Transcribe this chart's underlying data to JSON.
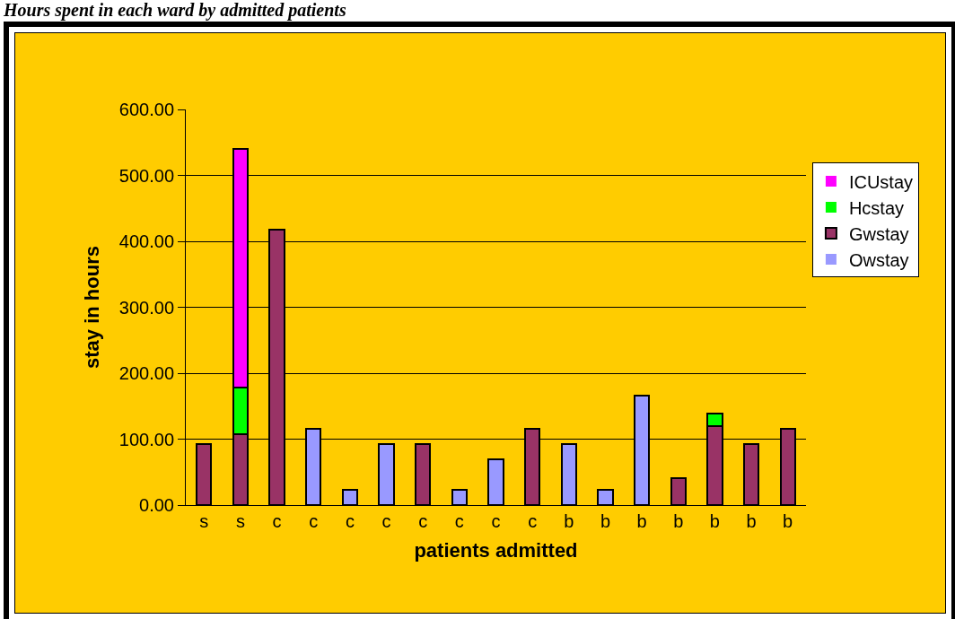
{
  "chart_data": {
    "type": "bar",
    "title": "Hours spent in each ward by admitted patients",
    "xlabel": "patients admitted",
    "ylabel": "stay in hours",
    "stacked": true,
    "categories": [
      "s",
      "s",
      "c",
      "c",
      "c",
      "c",
      "c",
      "c",
      "c",
      "c",
      "b",
      "b",
      "b",
      "b",
      "b",
      "b",
      "b"
    ],
    "series": [
      {
        "name": "Owstay",
        "color": "#9999ff",
        "values": [
          0,
          0,
          0,
          115,
          23,
          92,
          0,
          23,
          70,
          0,
          92,
          23,
          166,
          0,
          0,
          0,
          0
        ]
      },
      {
        "name": "Gwstay",
        "color": "#993366",
        "values": [
          92,
          108,
          418,
          0,
          0,
          0,
          92,
          0,
          0,
          115,
          0,
          0,
          0,
          41,
          120,
          92,
          115
        ]
      },
      {
        "name": "Hcstay",
        "color": "#00ff00",
        "values": [
          0,
          70,
          0,
          0,
          0,
          0,
          0,
          0,
          0,
          0,
          0,
          0,
          0,
          0,
          19,
          0,
          0
        ]
      },
      {
        "name": "ICUstay",
        "color": "#ff00ff",
        "values": [
          0,
          362,
          0,
          0,
          0,
          0,
          0,
          0,
          0,
          0,
          0,
          0,
          0,
          0,
          0,
          0,
          0
        ]
      }
    ],
    "ylim": [
      0,
      600
    ],
    "yticks": [
      {
        "value": 0,
        "label": "0.00"
      },
      {
        "value": 100,
        "label": "100.00"
      },
      {
        "value": 200,
        "label": "200.00"
      },
      {
        "value": 300,
        "label": "300.00"
      },
      {
        "value": 400,
        "label": "400.00"
      },
      {
        "value": 500,
        "label": "500.00"
      },
      {
        "value": 600,
        "label": "600.00"
      }
    ],
    "grid": "y",
    "legend": "right"
  }
}
